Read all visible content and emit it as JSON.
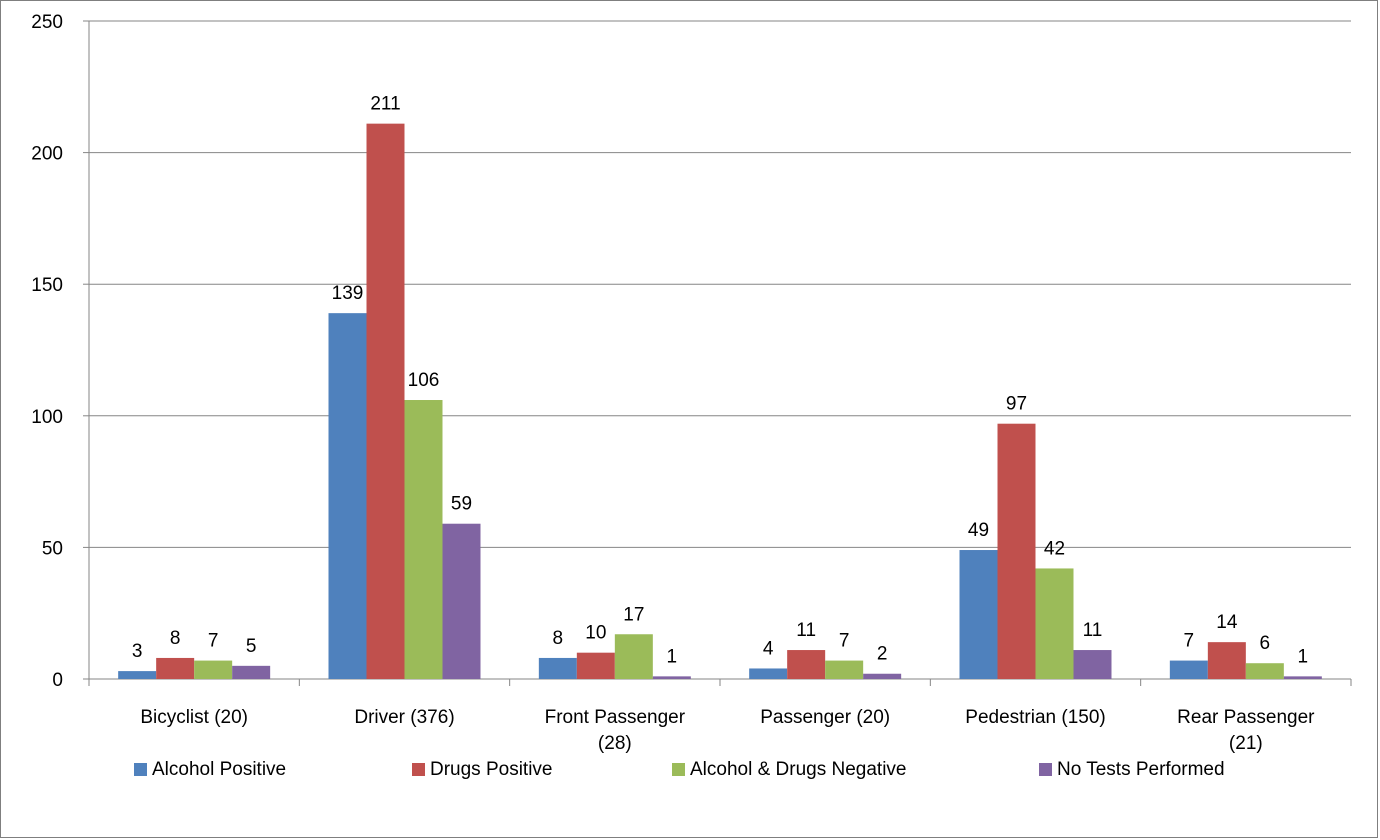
{
  "chart_data": {
    "type": "bar",
    "categories": [
      "Bicyclist (20)",
      "Driver (376)",
      "Front Passenger (28)",
      "Passenger (20)",
      "Pedestrian (150)",
      "Rear Passenger (21)"
    ],
    "category_lines": [
      [
        "Bicyclist (20)"
      ],
      [
        "Driver (376)"
      ],
      [
        "Front Passenger",
        "(28)"
      ],
      [
        "Passenger (20)"
      ],
      [
        "Pedestrian (150)"
      ],
      [
        "Rear Passenger",
        "(21)"
      ]
    ],
    "series": [
      {
        "name": "Alcohol Positive",
        "color": "#4F81BD",
        "values": [
          3,
          139,
          8,
          4,
          49,
          7
        ]
      },
      {
        "name": "Drugs Positive",
        "color": "#C0504D",
        "values": [
          8,
          211,
          10,
          11,
          97,
          14
        ]
      },
      {
        "name": "Alcohol & Drugs Negative",
        "color": "#9BBB59",
        "values": [
          7,
          106,
          17,
          7,
          42,
          6
        ]
      },
      {
        "name": "No Tests Performed",
        "color": "#8064A2",
        "values": [
          5,
          59,
          1,
          2,
          11,
          1
        ]
      }
    ],
    "ylim": [
      0,
      250
    ],
    "yticks": [
      0,
      50,
      100,
      150,
      200,
      250
    ],
    "grid": true,
    "data_labels": true,
    "legend_position": "bottom"
  }
}
